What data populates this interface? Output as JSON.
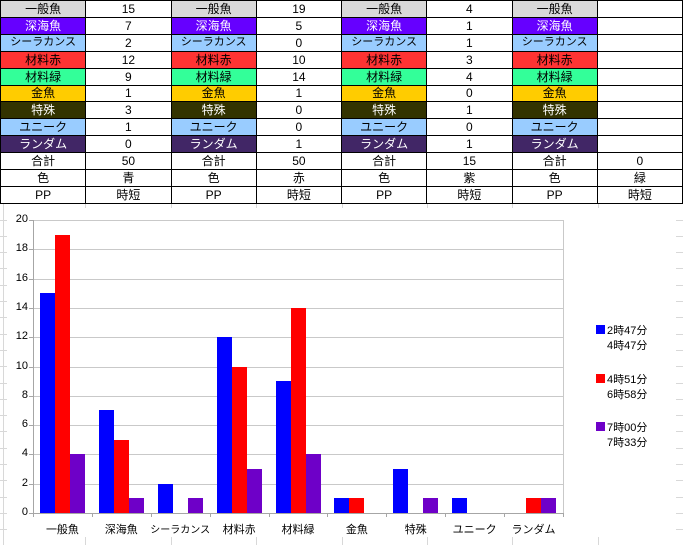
{
  "table": {
    "rows": [
      {
        "label": "一般魚",
        "bg": "#D9D9D9",
        "fg": "#000000"
      },
      {
        "label": "深海魚",
        "bg": "#6600FF",
        "fg": "#FFFFFF"
      },
      {
        "label": "シーラカンス",
        "bg": "#99CCFF",
        "fg": "#000000"
      },
      {
        "label": "材料赤",
        "bg": "#FF3333",
        "fg": "#000000"
      },
      {
        "label": "材料緑",
        "bg": "#33FF99",
        "fg": "#000000"
      },
      {
        "label": "金魚",
        "bg": "#FFCC00",
        "fg": "#000000"
      },
      {
        "label": "特殊",
        "bg": "#333300",
        "fg": "#FFFFFF"
      },
      {
        "label": "ユニーク",
        "bg": "#99CCFF",
        "fg": "#000000"
      },
      {
        "label": "ランダム",
        "bg": "#412666",
        "fg": "#FFFFFF"
      },
      {
        "label": "合計",
        "bg": "#FFFFFF",
        "fg": "#000000"
      },
      {
        "label": "色",
        "bg": "#FFFFFF",
        "fg": "#000000"
      },
      {
        "label": "PP",
        "bg": "#FFFFFF",
        "fg": "#000000"
      }
    ],
    "groups": [
      {
        "values": [
          "15",
          "7",
          "2",
          "12",
          "9",
          "1",
          "3",
          "1",
          "0",
          "50",
          "青",
          "時短"
        ]
      },
      {
        "values": [
          "19",
          "5",
          "0",
          "10",
          "14",
          "1",
          "0",
          "0",
          "1",
          "50",
          "赤",
          "時短"
        ]
      },
      {
        "values": [
          "4",
          "1",
          "1",
          "3",
          "4",
          "0",
          "1",
          "0",
          "1",
          "15",
          "紫",
          "時短"
        ]
      },
      {
        "values": [
          "",
          "",
          "",
          "",
          "",
          "",
          "",
          "",
          "",
          "0",
          "緑",
          "時短"
        ]
      }
    ]
  },
  "chart_data": {
    "type": "bar",
    "title": "",
    "xlabel": "",
    "ylabel": "",
    "categories": [
      "一般魚",
      "深海魚",
      "シーラカンス",
      "材料赤",
      "材料緑",
      "金魚",
      "特殊",
      "ユニーク",
      "ランダム"
    ],
    "series": [
      {
        "name": "2時47分 4時47分",
        "name_lines": [
          "2時47分",
          "4時47分"
        ],
        "color": "#0000FF",
        "values": [
          15,
          7,
          2,
          12,
          9,
          1,
          3,
          1,
          0
        ]
      },
      {
        "name": "4時51分 6時58分",
        "name_lines": [
          "4時51分",
          "6時58分"
        ],
        "color": "#FF0000",
        "values": [
          19,
          5,
          0,
          10,
          14,
          1,
          0,
          0,
          1
        ]
      },
      {
        "name": "7時00分 7時33分",
        "name_lines": [
          "7時00分",
          "7時33分"
        ],
        "color": "#6E00C8",
        "values": [
          4,
          1,
          1,
          3,
          4,
          0,
          1,
          0,
          1
        ]
      }
    ],
    "ylim": [
      0,
      20
    ],
    "ytick_step": 2,
    "grid": true,
    "legend_position": "right"
  }
}
